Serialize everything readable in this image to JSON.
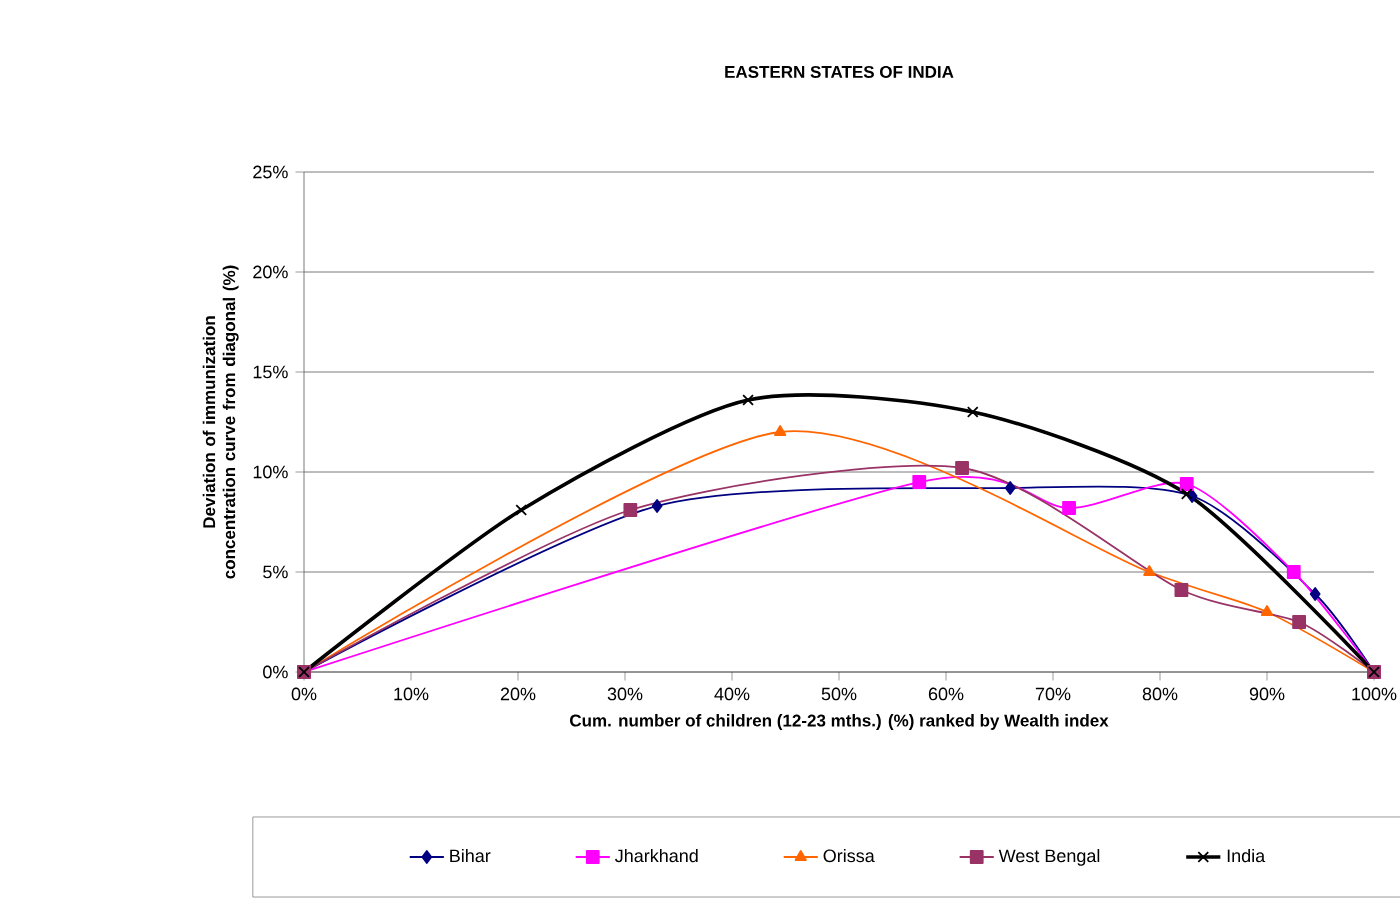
{
  "chart_data": {
    "type": "line",
    "title": "EASTERN STATES OF INDIA",
    "xlabel": "Cum. number of children (12-23 mths.) (%) ranked by Wealth index",
    "ylabel": "Deviation of immunization concentration curve from diagonal (%)",
    "xlim": [
      0,
      100
    ],
    "ylim": [
      0,
      25
    ],
    "xticks": [
      {
        "value": 0,
        "label": "0%"
      },
      {
        "value": 10,
        "label": "10%"
      },
      {
        "value": 20,
        "label": "20%"
      },
      {
        "value": 30,
        "label": "30%"
      },
      {
        "value": 40,
        "label": "40%"
      },
      {
        "value": 50,
        "label": "50%"
      },
      {
        "value": 60,
        "label": "60%"
      },
      {
        "value": 70,
        "label": "70%"
      },
      {
        "value": 80,
        "label": "80%"
      },
      {
        "value": 90,
        "label": "90%"
      },
      {
        "value": 100,
        "label": "100%"
      }
    ],
    "yticks": [
      {
        "value": 0,
        "label": "0%"
      },
      {
        "value": 5,
        "label": "5%"
      },
      {
        "value": 10,
        "label": "10%"
      },
      {
        "value": 15,
        "label": "15%"
      },
      {
        "value": 20,
        "label": "20%"
      },
      {
        "value": 25,
        "label": "25%"
      }
    ],
    "grid": "y",
    "legend": "bottom",
    "series": [
      {
        "name": "Bihar",
        "color": "#000080",
        "marker": "diamond",
        "x": [
          0,
          33,
          66,
          83,
          94.5,
          100
        ],
        "values": [
          0,
          8.3,
          9.2,
          8.8,
          3.9,
          0
        ]
      },
      {
        "name": "Jharkhand",
        "color": "#ff00ff",
        "marker": "square",
        "x": [
          0,
          57.5,
          71.5,
          82.5,
          92.5,
          100
        ],
        "values": [
          0,
          9.5,
          8.2,
          9.4,
          5.0,
          0
        ]
      },
      {
        "name": "Orissa",
        "color": "#ff6600",
        "marker": "triangle",
        "x": [
          0,
          44.5,
          62,
          79,
          90,
          100
        ],
        "values": [
          0,
          12.0,
          null,
          5.0,
          3.0,
          0
        ]
      },
      {
        "name": "West Bengal",
        "color": "#993366",
        "marker": "square",
        "x": [
          0,
          30.5,
          61.5,
          82,
          93,
          100
        ],
        "values": [
          0,
          8.1,
          10.2,
          4.1,
          2.5,
          0
        ]
      },
      {
        "name": "India",
        "color": "#000000",
        "marker": "cross",
        "x": [
          0,
          20.3,
          41.5,
          62.5,
          82.5,
          100
        ],
        "values": [
          0,
          8.1,
          13.6,
          13.0,
          8.9,
          0
        ]
      }
    ]
  }
}
